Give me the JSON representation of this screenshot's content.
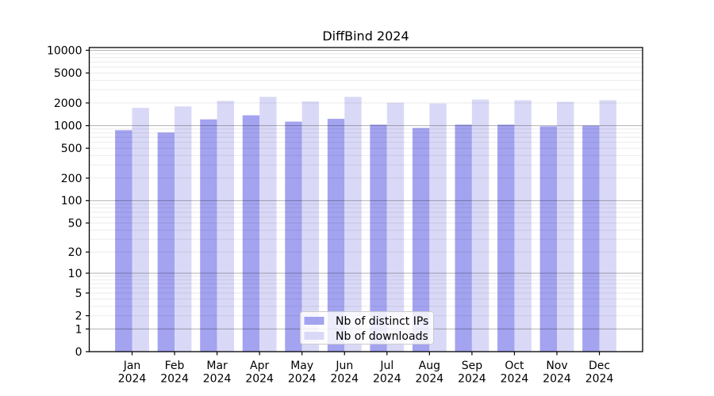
{
  "chart_data": {
    "type": "bar",
    "title": "DiffBind 2024",
    "categories": [
      "Jan",
      "Feb",
      "Mar",
      "Apr",
      "May",
      "Jun",
      "Jul",
      "Aug",
      "Sep",
      "Oct",
      "Nov",
      "Dec"
    ],
    "x_year_label": "2024",
    "series": [
      {
        "name": "Nb of distinct IPs",
        "color": "#a3a3f0",
        "values": [
          870,
          810,
          1210,
          1370,
          1130,
          1230,
          1030,
          930,
          1030,
          1030,
          980,
          1000
        ]
      },
      {
        "name": "Nb of downloads",
        "color": "#d9d9f7",
        "values": [
          1720,
          1800,
          2130,
          2410,
          2090,
          2410,
          2010,
          1970,
          2220,
          2170,
          2070,
          2170
        ]
      }
    ],
    "xlabel": "",
    "ylabel": "",
    "y_scale": "log10(1+y)",
    "y_ticks": [
      0,
      1,
      2,
      5,
      10,
      20,
      50,
      100,
      200,
      500,
      1000,
      2000,
      5000,
      10000
    ],
    "ylim": [
      0,
      10890
    ],
    "grid": "horizontal major+minor, drawn over bars",
    "legend": {
      "position": "lower center",
      "labels": [
        "Nb of distinct IPs",
        "Nb of downloads"
      ]
    },
    "style": {
      "background": "#ffffff",
      "text_color": "#000000",
      "axis_color": "#000000",
      "grid_major_color": "rgba(0,0,0,0.30)",
      "grid_minor_color": "rgba(0,0,0,0.08)",
      "legend_border_color": "#cccccc",
      "legend_bg_color": "#ffffff"
    }
  }
}
